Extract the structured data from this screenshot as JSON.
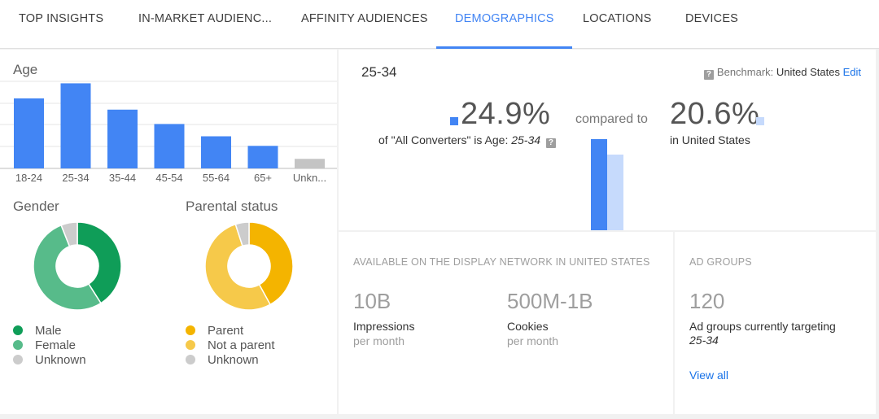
{
  "tabs": [
    {
      "label": "TOP INSIGHTS",
      "active": false
    },
    {
      "label": "IN-MARKET AUDIENC...",
      "active": false
    },
    {
      "label": "AFFINITY AUDIENCES",
      "active": false
    },
    {
      "label": "DEMOGRAPHICS",
      "active": true
    },
    {
      "label": "LOCATIONS",
      "active": false
    },
    {
      "label": "DEVICES",
      "active": false
    }
  ],
  "age": {
    "title": "Age",
    "categories": [
      "18-24",
      "25-34",
      "35-44",
      "45-54",
      "55-64",
      "65+",
      "Unkn..."
    ],
    "values": [
      20.5,
      24.9,
      17.2,
      13.0,
      9.4,
      6.6,
      2.8
    ],
    "colors": [
      "#4285f4",
      "#4285f4",
      "#4285f4",
      "#4285f4",
      "#4285f4",
      "#4285f4",
      "#c4c4c4"
    ],
    "ymax": 30
  },
  "gender": {
    "title": "Gender",
    "slices": [
      {
        "label": "Male",
        "share": 0.41,
        "color": "#0f9d58"
      },
      {
        "label": "Female",
        "share": 0.53,
        "color": "#57bb8a"
      },
      {
        "label": "Unknown",
        "share": 0.06,
        "color": "#cccccc"
      }
    ]
  },
  "parental": {
    "title": "Parental status",
    "slices": [
      {
        "label": "Parent",
        "share": 0.42,
        "color": "#f4b400"
      },
      {
        "label": "Not a parent",
        "share": 0.53,
        "color": "#f6c94a"
      },
      {
        "label": "Unknown",
        "share": 0.05,
        "color": "#cccccc"
      }
    ]
  },
  "detail": {
    "selected": "25-34",
    "benchmark_prefix": "Benchmark:",
    "benchmark_country": "United States",
    "edit": "Edit",
    "pct_selected": "24.9%",
    "pct_selected_value": 24.9,
    "pct_selected_desc_prefix": "of \"All Converters\" is Age:",
    "pct_selected_desc_age": "25-34",
    "compared_to": "compared to",
    "pct_benchmark": "20.6%",
    "pct_benchmark_value": 20.6,
    "pct_benchmark_desc": "in United States",
    "color_selected": "#4285f4",
    "color_benchmark": "#c6dafc"
  },
  "available": {
    "header": "AVAILABLE ON THE DISPLAY NETWORK IN UNITED STATES",
    "impressions_value": "10B",
    "impressions_label": "Impressions",
    "impressions_sub": "per month",
    "cookies_value": "500M-1B",
    "cookies_label": "Cookies",
    "cookies_sub": "per month"
  },
  "ad_groups": {
    "header": "AD GROUPS",
    "count": "120",
    "label": "Ad groups currently targeting",
    "age": "25-34",
    "view_all": "View all"
  }
}
